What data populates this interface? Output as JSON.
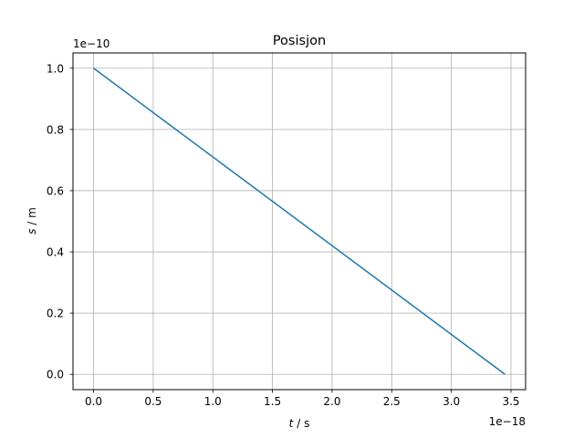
{
  "chart_data": {
    "type": "line",
    "title": "Posisjon",
    "xlabel_var": "t",
    "xlabel_unit": " / s",
    "ylabel_var": "s",
    "ylabel_unit": " / m",
    "x_offset_label": "1e−18",
    "y_offset_label": "1e−10",
    "x_scale": 1e-18,
    "y_scale": 1e-10,
    "xlim": [
      -0.1725,
      3.6225
    ],
    "ylim": [
      -0.05,
      1.05
    ],
    "x_ticks": [
      0.0,
      0.5,
      1.0,
      1.5,
      2.0,
      2.5,
      3.0,
      3.5
    ],
    "x_tick_labels": [
      "0.0",
      "0.5",
      "1.0",
      "1.5",
      "2.0",
      "2.5",
      "3.0",
      "3.5"
    ],
    "y_ticks": [
      0.0,
      0.2,
      0.4,
      0.6,
      0.8,
      1.0
    ],
    "y_tick_labels": [
      "0.0",
      "0.2",
      "0.4",
      "0.6",
      "0.8",
      "1.0"
    ],
    "grid": true,
    "series": [
      {
        "color": "#1f77b4",
        "x": [
          0.0,
          3.45
        ],
        "y": [
          1.0,
          0.0
        ]
      }
    ]
  }
}
